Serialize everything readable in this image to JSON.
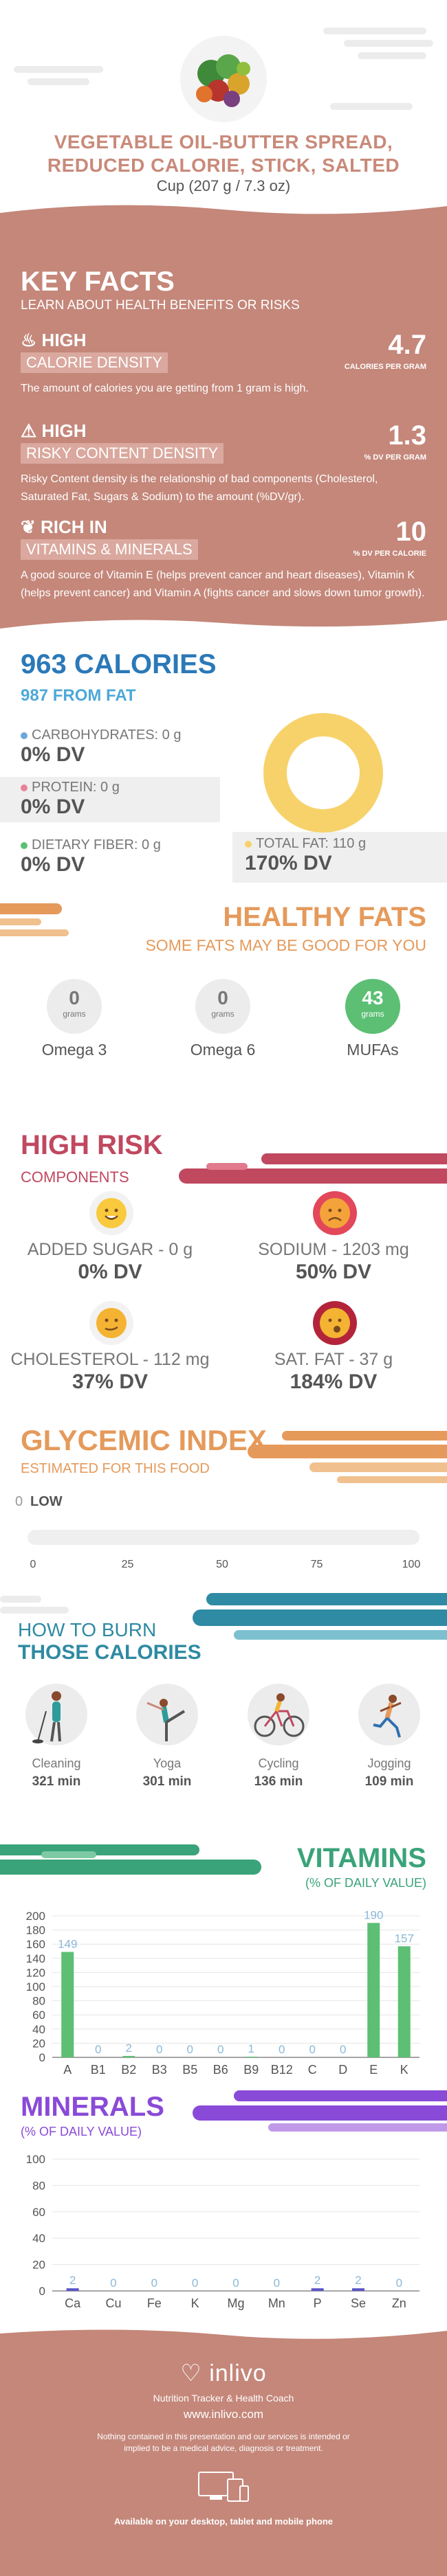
{
  "header": {
    "title_line1": "VEGETABLE OIL-BUTTER SPREAD,",
    "title_line2": "REDUCED CALORIE, STICK, SALTED",
    "serving": "Cup (207 g / 7.3 oz)"
  },
  "key_facts": {
    "title": "KEY FACTS",
    "subtitle": "LEARN ABOUT HEALTH BENEFITS OR RISKS",
    "items": [
      {
        "level": "HIGH",
        "name": "CALORIE DENSITY",
        "value": "4.7",
        "unit": "CALORIES PER GRAM",
        "desc": "The amount of calories you are getting from 1 gram is high."
      },
      {
        "level": "HIGH",
        "name": "RISKY CONTENT DENSITY",
        "value": "1.3",
        "unit": "% DV PER GRAM",
        "desc": "Risky Content density is the relationship of bad components (Cholesterol, Saturated Fat, Sugars & Sodium) to the amount (%DV/gr)."
      },
      {
        "level": "RICH  IN",
        "name": "VITAMINS & MINERALS",
        "value": "10",
        "unit": "% DV PER CALORIE",
        "desc": "A good source of Vitamin E (helps prevent cancer and heart diseases), Vitamin K (helps prevent cancer) and Vitamin A (fights cancer and slows down tumor growth)."
      }
    ]
  },
  "calories": {
    "title": "963 CALORIES",
    "subtitle": "987 FROM FAT",
    "carbs_label": "CARBOHYDRATES: 0 g",
    "carbs_dv": "0% DV",
    "protein_label": "PROTEIN: 0 g",
    "protein_dv": "0% DV",
    "fiber_label": "DIETARY FIBER: 0 g",
    "fiber_dv": "0% DV",
    "fat_label": "TOTAL FAT: 110 g",
    "fat_dv": "170% DV",
    "colors": {
      "carbs": "#6aa8dc",
      "protein": "#e7829a",
      "fiber": "#5cbf74",
      "fat": "#f7d26a"
    }
  },
  "healthy_fats": {
    "title": "HEALTHY FATS",
    "subtitle": "SOME FATS MAY BE GOOD FOR YOU",
    "unit": "grams",
    "items": [
      {
        "value": "0",
        "label": "Omega 3"
      },
      {
        "value": "0",
        "label": "Omega 6"
      },
      {
        "value": "43",
        "label": "MUFAs"
      }
    ]
  },
  "high_risk": {
    "title": "HIGH RISK",
    "subtitle": "COMPONENTS",
    "items": [
      {
        "label": "ADDED SUGAR - 0 g",
        "dv": "0% DV",
        "icon": "smile-face-icon"
      },
      {
        "label": "SODIUM - 1203 mg",
        "dv": "50% DV",
        "icon": "sad-face-icon"
      },
      {
        "label": "CHOLESTEROL - 112 mg",
        "dv": "37% DV",
        "icon": "neutral-face-icon"
      },
      {
        "label": "SAT. FAT - 37 g",
        "dv": "184% DV",
        "icon": "worried-face-icon"
      }
    ]
  },
  "glycemic": {
    "title": "GLYCEMIC INDEX",
    "subtitle": "ESTIMATED FOR THIS FOOD",
    "value": "0",
    "level": "LOW",
    "ticks": [
      "0",
      "25",
      "50",
      "75",
      "100"
    ]
  },
  "burn": {
    "title1": "HOW TO BURN",
    "title2": "THOSE CALORIES",
    "items": [
      {
        "activity": "Cleaning",
        "time": "321 min"
      },
      {
        "activity": "Yoga",
        "time": "301 min"
      },
      {
        "activity": "Cycling",
        "time": "136 min"
      },
      {
        "activity": "Jogging",
        "time": "109 min"
      }
    ]
  },
  "vitamins": {
    "title": "VITAMINS",
    "subtitle": "(% OF DAILY VALUE)"
  },
  "minerals": {
    "title": "MINERALS",
    "subtitle": "(% OF DAILY VALUE)"
  },
  "chart_data": [
    {
      "type": "bar",
      "categories": [
        "A",
        "B1",
        "B2",
        "B3",
        "B5",
        "B6",
        "B9",
        "B12",
        "C",
        "D",
        "E",
        "K"
      ],
      "values": [
        149,
        0,
        2,
        0,
        0,
        0,
        1,
        0,
        0,
        0,
        190,
        157
      ],
      "ylim": [
        0,
        200
      ],
      "yticks": [
        "0",
        "20",
        "40",
        "60",
        "80",
        "100",
        "120",
        "140",
        "160",
        "180",
        "200"
      ],
      "color": "#5cbf74"
    },
    {
      "type": "bar",
      "categories": [
        "Ca",
        "Cu",
        "Fe",
        "K",
        "Mg",
        "Mn",
        "P",
        "Se",
        "Zn"
      ],
      "values": [
        2,
        0,
        0,
        0,
        0,
        0,
        2,
        2,
        0
      ],
      "ylim": [
        0,
        100
      ],
      "yticks": [
        "0",
        "20",
        "40",
        "60",
        "80",
        "100"
      ],
      "color": "#5a55c9"
    }
  ],
  "footer": {
    "brand": "inlivo",
    "tagline": "Nutrition Tracker & Health Coach",
    "url": "www.inlivo.com",
    "disclaimer": "Nothing contained in this presentation and our services is intended or implied to be a medical advice, diagnosis or treatment.",
    "available": "Available on your desktop, tablet and mobile phone"
  }
}
